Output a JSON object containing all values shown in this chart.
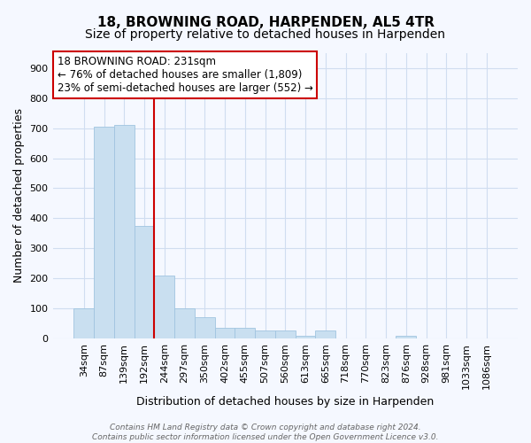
{
  "title": "18, BROWNING ROAD, HARPENDEN, AL5 4TR",
  "subtitle": "Size of property relative to detached houses in Harpenden",
  "xlabel": "Distribution of detached houses by size in Harpenden",
  "ylabel": "Number of detached properties",
  "categories": [
    "34sqm",
    "87sqm",
    "139sqm",
    "192sqm",
    "244sqm",
    "297sqm",
    "350sqm",
    "402sqm",
    "455sqm",
    "507sqm",
    "560sqm",
    "613sqm",
    "665sqm",
    "718sqm",
    "770sqm",
    "823sqm",
    "876sqm",
    "928sqm",
    "981sqm",
    "1033sqm",
    "1086sqm"
  ],
  "values": [
    100,
    705,
    710,
    375,
    210,
    100,
    72,
    35,
    35,
    25,
    25,
    10,
    25,
    0,
    0,
    0,
    10,
    0,
    0,
    0,
    0
  ],
  "bar_color": "#c9dff0",
  "bar_edgecolor": "#a0c4e0",
  "vline_x_index": 3.5,
  "vline_color": "#cc0000",
  "annotation_text": "18 BROWNING ROAD: 231sqm\n← 76% of detached houses are smaller (1,809)\n23% of semi-detached houses are larger (552) →",
  "annotation_box_facecolor": "#ffffff",
  "annotation_box_edgecolor": "#cc0000",
  "ylim": [
    0,
    950
  ],
  "yticks": [
    0,
    100,
    200,
    300,
    400,
    500,
    600,
    700,
    800,
    900
  ],
  "footer_text": "Contains HM Land Registry data © Crown copyright and database right 2024.\nContains public sector information licensed under the Open Government Licence v3.0.",
  "background_color": "#f5f8ff",
  "grid_color": "#d0ddf0",
  "title_fontsize": 11,
  "subtitle_fontsize": 10,
  "ylabel_fontsize": 9,
  "xlabel_fontsize": 9,
  "tick_fontsize": 8,
  "annot_fontsize": 8.5,
  "footer_fontsize": 6.5
}
